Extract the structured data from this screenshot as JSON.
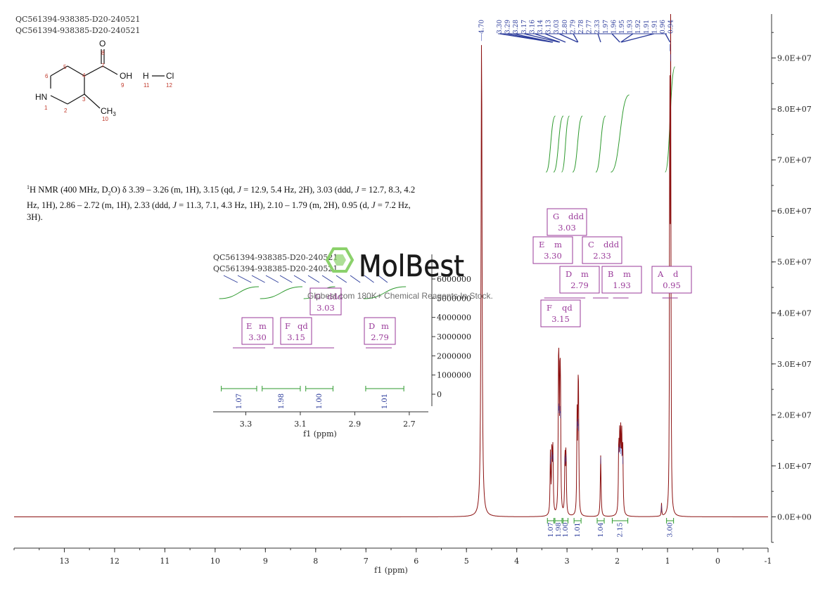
{
  "sample_ids": [
    "QC561394-938385-D20-240521",
    "QC561394-938385-D20-240521"
  ],
  "structure": {
    "atom_labels": {
      "O_carbonyl": "O",
      "OH": "OH",
      "HN": "HN",
      "CH3": "CH",
      "CH3_sub": "3",
      "H": "H",
      "Cl": "Cl"
    },
    "atom_numbers": [
      "1",
      "2",
      "3",
      "4",
      "5",
      "6",
      "7",
      "8",
      "9",
      "10",
      "11",
      "12"
    ]
  },
  "description": {
    "sup1": "1",
    "lead": "H NMR (400 MHz, D",
    "sub2": "2",
    "rest1": "O) δ 3.39 – 3.26 (m, 1H), 3.15 (qd, ",
    "J": "J",
    "rest2": " = 12.9, 5.4 Hz, 2H), 3.03 (ddd, ",
    "rest3": " = 12.7, 8.3, 4.2 Hz, 1H), 2.86 – 2.72 (m, 1H), 2.33 (ddd, ",
    "rest4": " = 11.3, 7.1, 4.3 Hz, 1H), 2.10 – 1.79 (m, 2H), 0.95 (d, ",
    "rest5": " = 7.2 Hz, 3H)."
  },
  "watermark": {
    "brand": "MolBest",
    "tagline": "Glpbest.com 180K+ Chemical Reagents In Stock."
  },
  "colors": {
    "spectrum": "#8b1010",
    "integral": "#2e9a2e",
    "peak_label": "#2a3a9a",
    "multiplet": "#9a3a9a",
    "axis": "#333333",
    "watermark_green": "#8bd16b"
  },
  "chart_data": {
    "type": "line",
    "xlabel": "f1 (ppm)",
    "ylabel": "",
    "x_reversed": true,
    "xlim": [
      14,
      -1
    ],
    "ylim": [
      -5000000.0,
      96000000.0
    ],
    "x_ticks": [
      13,
      12,
      11,
      10,
      9,
      8,
      7,
      6,
      5,
      4,
      3,
      2,
      1,
      0,
      -1
    ],
    "y_ticks": [
      {
        "value": 0,
        "label": "0.0E+00"
      },
      {
        "value": 10000000.0,
        "label": "1.0E+07"
      },
      {
        "value": 20000000.0,
        "label": "2.0E+07"
      },
      {
        "value": 30000000.0,
        "label": "3.0E+07"
      },
      {
        "value": 40000000.0,
        "label": "4.0E+07"
      },
      {
        "value": 50000000.0,
        "label": "5.0E+07"
      },
      {
        "value": 60000000.0,
        "label": "6.0E+07"
      },
      {
        "value": 70000000.0,
        "label": "7.0E+07"
      },
      {
        "value": 80000000.0,
        "label": "8.0E+07"
      },
      {
        "value": 90000000.0,
        "label": "9.0E+07"
      }
    ],
    "peaks": [
      {
        "ppm": 4.7,
        "height": 95000000.0,
        "width": 0.012
      },
      {
        "ppm": 3.33,
        "height": 12000000.0,
        "width": 0.008
      },
      {
        "ppm": 3.3,
        "height": 13000000.0,
        "width": 0.008
      },
      {
        "ppm": 3.28,
        "height": 12500000.0,
        "width": 0.008
      },
      {
        "ppm": 3.17,
        "height": 22000000.0,
        "width": 0.007
      },
      {
        "ppm": 3.16,
        "height": 22500000.0,
        "width": 0.007
      },
      {
        "ppm": 3.14,
        "height": 22000000.0,
        "width": 0.007
      },
      {
        "ppm": 3.13,
        "height": 21000000.0,
        "width": 0.007
      },
      {
        "ppm": 3.04,
        "height": 12000000.0,
        "width": 0.008
      },
      {
        "ppm": 3.02,
        "height": 12500000.0,
        "width": 0.008
      },
      {
        "ppm": 2.8,
        "height": 19000000.0,
        "width": 0.007
      },
      {
        "ppm": 2.78,
        "height": 19500000.0,
        "width": 0.007
      },
      {
        "ppm": 2.77,
        "height": 18500000.0,
        "width": 0.007
      },
      {
        "ppm": 2.33,
        "height": 12000000.0,
        "width": 0.009
      },
      {
        "ppm": 1.97,
        "height": 14000000.0,
        "width": 0.008
      },
      {
        "ppm": 1.95,
        "height": 14500000.0,
        "width": 0.008
      },
      {
        "ppm": 1.93,
        "height": 14000000.0,
        "width": 0.008
      },
      {
        "ppm": 1.91,
        "height": 13500000.0,
        "width": 0.008
      },
      {
        "ppm": 1.89,
        "height": 12000000.0,
        "width": 0.008
      },
      {
        "ppm": 1.12,
        "height": 2500000.0,
        "width": 0.006
      },
      {
        "ppm": 0.955,
        "height": 93000000.0,
        "width": 0.006
      },
      {
        "ppm": 0.937,
        "height": 91000000.0,
        "width": 0.006
      }
    ],
    "peak_labels": [
      "4.70",
      "3.30",
      "3.29",
      "3.28",
      "3.17",
      "3.16",
      "3.14",
      "3.13",
      "3.03",
      "2.80",
      "2.79",
      "2.78",
      "2.77",
      "2.33",
      "1.97",
      "1.96",
      "1.95",
      "1.93",
      "1.92",
      "1.91",
      "1.91",
      "0.96",
      "0.94"
    ],
    "multiplets": [
      {
        "letter": "G",
        "type": "ddd",
        "ppm": "3.03"
      },
      {
        "letter": "E",
        "type": "m",
        "ppm": "3.30"
      },
      {
        "letter": "C",
        "type": "ddd",
        "ppm": "2.33"
      },
      {
        "letter": "D",
        "type": "m",
        "ppm": "2.79"
      },
      {
        "letter": "B",
        "type": "m",
        "ppm": "1.93"
      },
      {
        "letter": "A",
        "type": "d",
        "ppm": "0.95"
      },
      {
        "letter": "F",
        "type": "qd",
        "ppm": "3.15"
      }
    ],
    "integrals": [
      {
        "value": "1.07",
        "from": 3.39,
        "to": 3.26
      },
      {
        "value": "1.98",
        "from": 3.24,
        "to": 3.1
      },
      {
        "value": "1.00",
        "from": 3.08,
        "to": 2.98
      },
      {
        "value": "1.01",
        "from": 2.86,
        "to": 2.72
      },
      {
        "value": "1.04",
        "from": 2.4,
        "to": 2.26
      },
      {
        "value": "2.15",
        "from": 2.1,
        "to": 1.79
      },
      {
        "value": "3.00",
        "from": 1.02,
        "to": 0.88
      }
    ],
    "inset": {
      "xlabel": "f1 (ppm)",
      "xlim": [
        3.42,
        2.63
      ],
      "x_ticks": [
        "3.3",
        "3.1",
        "2.9",
        "2.7"
      ],
      "y_ticks": [
        "0",
        "1000000",
        "2000000",
        "3000000",
        "4000000",
        "5000000",
        "6000000"
      ],
      "ylim": [
        -500000.0,
        7500000.0
      ],
      "integrals": [
        "1.07",
        "1.98",
        "1.00",
        "1.01"
      ],
      "multiplets": [
        {
          "letter": "E",
          "type": "m",
          "ppm": "3.30"
        },
        {
          "letter": "F",
          "type": "qd",
          "ppm": "3.15"
        },
        {
          "letter": "G",
          "type": "ddd",
          "ppm": "3.03"
        },
        {
          "letter": "D",
          "type": "m",
          "ppm": "2.79"
        }
      ]
    }
  }
}
